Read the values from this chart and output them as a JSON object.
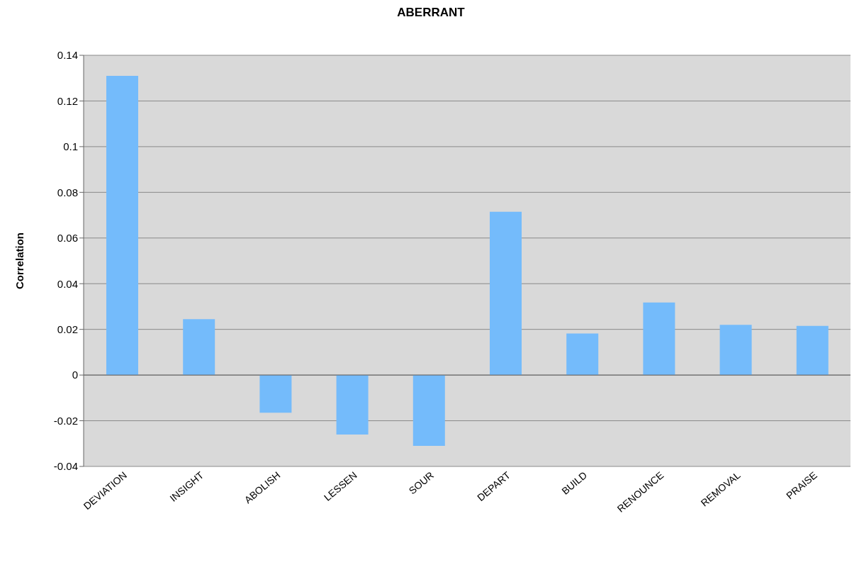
{
  "chart_data": {
    "type": "bar",
    "title": "ABERRANT",
    "ylabel": "Correlation",
    "categories": [
      "DEVIATION",
      "INSIGHT",
      "ABOLISH",
      "LESSEN",
      "SOUR",
      "DEPART",
      "BUILD",
      "RENOUNCE",
      "REMOVAL",
      "PRAISE"
    ],
    "values": [
      0.131,
      0.0245,
      -0.0165,
      -0.026,
      -0.031,
      0.0715,
      0.0182,
      0.0318,
      0.022,
      0.0215
    ],
    "color": "#74bbfb",
    "ylim": [
      -0.04,
      0.14
    ],
    "yticks": [
      -0.04,
      -0.02,
      0,
      0.02,
      0.04,
      0.06,
      0.08,
      0.1,
      0.12,
      0.14
    ],
    "grid": "y",
    "legend": false
  }
}
